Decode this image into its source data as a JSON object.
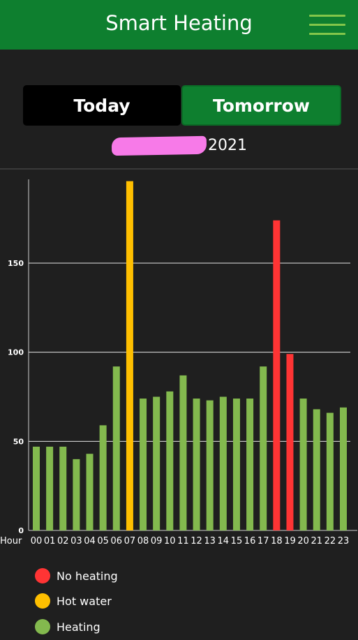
{
  "header": {
    "title": "Smart Heating",
    "menu_icon": "hamburger-menu-icon"
  },
  "tabs": [
    {
      "label": "Today",
      "active": false
    },
    {
      "label": "Tomorrow",
      "active": true
    }
  ],
  "date_year": "2021",
  "colors": {
    "header_bg": "#0e7f2f",
    "heating": "#83b94e",
    "hot_water": "#ffbf00",
    "no_heating": "#ff3434"
  },
  "chart_data": {
    "type": "bar",
    "x_label": "Hour",
    "categories": [
      "00",
      "01",
      "02",
      "03",
      "04",
      "05",
      "06",
      "07",
      "08",
      "09",
      "10",
      "11",
      "12",
      "13",
      "14",
      "15",
      "16",
      "17",
      "18",
      "19",
      "20",
      "21",
      "22",
      "23"
    ],
    "values": [
      47,
      47,
      47,
      40,
      43,
      59,
      92,
      196,
      74,
      75,
      78,
      87,
      74,
      73,
      75,
      74,
      74,
      92,
      174,
      99,
      74,
      68,
      66,
      69
    ],
    "status": [
      "heating",
      "heating",
      "heating",
      "heating",
      "heating",
      "heating",
      "heating",
      "hot_water",
      "heating",
      "heating",
      "heating",
      "heating",
      "heating",
      "heating",
      "heating",
      "heating",
      "heating",
      "heating",
      "no_heating",
      "no_heating",
      "heating",
      "heating",
      "heating",
      "heating"
    ],
    "y_ticks": [
      0,
      50,
      100,
      150
    ],
    "ylim": [
      0,
      197
    ],
    "grid": true
  },
  "legend": [
    {
      "key": "no_heating",
      "label": "No heating"
    },
    {
      "key": "hot_water",
      "label": "Hot water"
    },
    {
      "key": "heating",
      "label": "Heating"
    }
  ]
}
